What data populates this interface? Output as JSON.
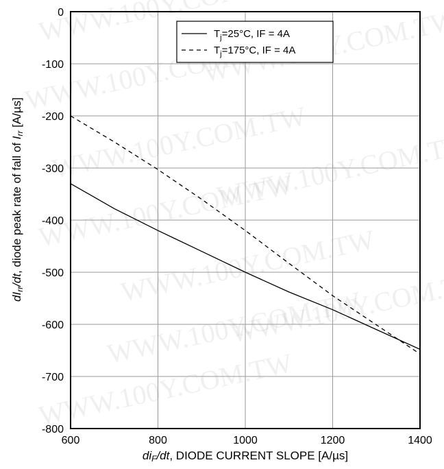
{
  "chart_data": {
    "type": "line",
    "xlabel_prefix": "di",
    "xlabel_sub": "F",
    "xlabel_mid": "/dt",
    "xlabel_rest": ", DIODE CURRENT SLOPE [A/µs]",
    "ylabel_prefix": "dI",
    "ylabel_sub": "rr",
    "ylabel_mid": "/dt",
    "ylabel_rest": ", diode peak rate of fall of ",
    "ylabel_tail": "I",
    "ylabel_tail_sub": "rr",
    "ylabel_unit": " [A/µs]",
    "xlim": [
      600,
      1400
    ],
    "ylim": [
      -800,
      0
    ],
    "xticks": [
      600,
      800,
      1000,
      1200,
      1400
    ],
    "yticks": [
      0,
      -100,
      -200,
      -300,
      -400,
      -500,
      -600,
      -700,
      -800
    ],
    "grid": true,
    "legend_position": "top-center",
    "series": [
      {
        "name": "T",
        "name_sub": "j",
        "name_rest": "=25°C, IF = 4A",
        "style": "solid",
        "x": [
          600,
          700,
          800,
          900,
          1000,
          1100,
          1200,
          1300,
          1400
        ],
        "y": [
          -330,
          -378,
          -420,
          -460,
          -500,
          -538,
          -572,
          -610,
          -648
        ]
      },
      {
        "name": "T",
        "name_sub": "j",
        "name_rest": "=175°C, IF = 4A",
        "style": "dashed",
        "x": [
          600,
          700,
          800,
          900,
          1000,
          1100,
          1200,
          1300,
          1400
        ],
        "y": [
          -200,
          -250,
          -303,
          -360,
          -420,
          -483,
          -545,
          -601,
          -657
        ]
      }
    ]
  },
  "watermark_text": "WWW.100Y.COM.TW",
  "colors": {
    "line": "#000000",
    "grid": "#9a9a9a",
    "background": "#ffffff"
  }
}
